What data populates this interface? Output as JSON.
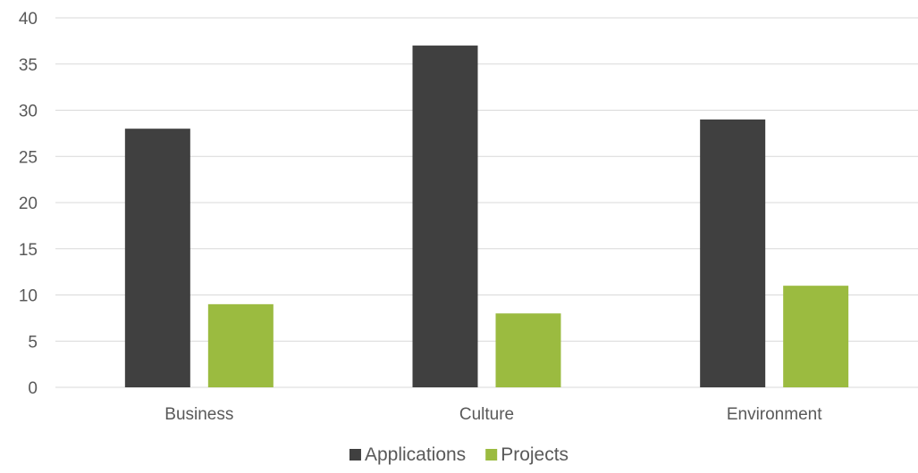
{
  "chart_data": {
    "type": "bar",
    "categories": [
      "Business",
      "Culture",
      "Environment"
    ],
    "series": [
      {
        "name": "Applications",
        "color": "#404040",
        "values": [
          28,
          37,
          29
        ]
      },
      {
        "name": "Projects",
        "color": "#9bbb40",
        "values": [
          9,
          8,
          11
        ]
      }
    ],
    "ylim": [
      0,
      40
    ],
    "yticks": [
      0,
      5,
      10,
      15,
      20,
      25,
      30,
      35,
      40
    ],
    "grid": true,
    "legend_position": "bottom"
  }
}
